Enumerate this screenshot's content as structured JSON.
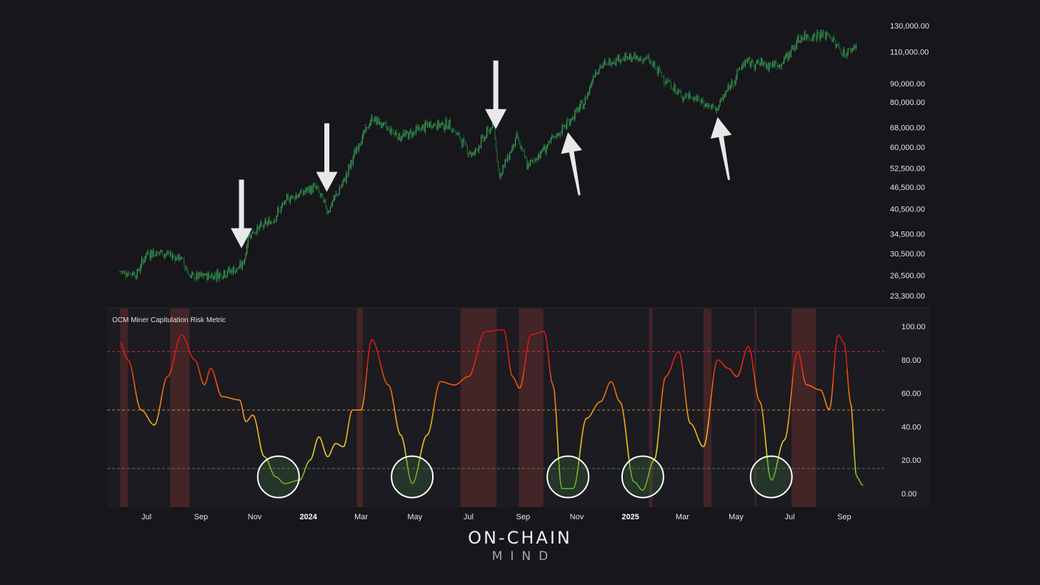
{
  "chart_data": [
    {
      "type": "candlestick",
      "name": "",
      "y_scale": "log",
      "ylim": [
        22000,
        135000
      ],
      "y_ticks": [
        "130,000.00",
        "110,000.00",
        "90,000.00",
        "80,000.00",
        "68,000.00",
        "60,000.00",
        "52,500.00",
        "46,500.00",
        "40,500.00",
        "34,500.00",
        "30,500.00",
        "26,500.00",
        "23,300.00"
      ],
      "x_range": [
        "2023-06",
        "2025-09"
      ],
      "price_path": [
        [
          "2023-06-01",
          27200
        ],
        [
          "2023-06-20",
          26800
        ],
        [
          "2023-07-01",
          30500
        ],
        [
          "2023-07-15",
          30800
        ],
        [
          "2023-08-10",
          29500
        ],
        [
          "2023-08-20",
          26200
        ],
        [
          "2023-09-15",
          26500
        ],
        [
          "2023-10-15",
          27800
        ],
        [
          "2023-10-20",
          29000
        ],
        [
          "2023-10-25",
          34500
        ],
        [
          "2023-11-20",
          37500
        ],
        [
          "2023-12-10",
          43500
        ],
        [
          "2024-01-10",
          46500
        ],
        [
          "2024-01-23",
          40000
        ],
        [
          "2024-02-10",
          48000
        ],
        [
          "2024-02-28",
          62000
        ],
        [
          "2024-03-14",
          72000
        ],
        [
          "2024-04-15",
          64000
        ],
        [
          "2024-05-20",
          69500
        ],
        [
          "2024-06-10",
          69000
        ],
        [
          "2024-07-05",
          57000
        ],
        [
          "2024-07-29",
          69500
        ],
        [
          "2024-08-05",
          50000
        ],
        [
          "2024-08-25",
          64000
        ],
        [
          "2024-09-06",
          53000
        ],
        [
          "2024-10-15",
          67000
        ],
        [
          "2024-11-10",
          80000
        ],
        [
          "2024-11-22",
          98000
        ],
        [
          "2024-12-17",
          106000
        ],
        [
          "2025-01-20",
          105000
        ],
        [
          "2025-02-25",
          84000
        ],
        [
          "2025-03-15",
          82000
        ],
        [
          "2025-04-08",
          76000
        ],
        [
          "2025-05-10",
          103000
        ],
        [
          "2025-06-20",
          101000
        ],
        [
          "2025-07-14",
          121000
        ],
        [
          "2025-08-14",
          123000
        ],
        [
          "2025-09-01",
          108000
        ],
        [
          "2025-09-15",
          115000
        ]
      ],
      "annotations": [
        {
          "type": "arrow-down",
          "date": "2023-10-17"
        },
        {
          "type": "arrow-down",
          "date": "2024-01-22"
        },
        {
          "type": "arrow-down",
          "date": "2024-08-01"
        },
        {
          "type": "arrow-up",
          "date": "2024-10-22"
        },
        {
          "type": "arrow-up",
          "date": "2025-04-10"
        }
      ]
    },
    {
      "type": "line",
      "title": "OCM Miner Capitulation Risk Metric",
      "ylim": [
        -8,
        110
      ],
      "y_ticks": [
        "100.00",
        "80.00",
        "60.00",
        "40.00",
        "20.00",
        "0.00"
      ],
      "x_ticks": [
        "Jul",
        "Sep",
        "Nov",
        "2024",
        "Mar",
        "May",
        "Jul",
        "Sep",
        "Nov",
        "2025",
        "Mar",
        "May",
        "Jul",
        "Sep"
      ],
      "x_ticks_bold": [
        "2024",
        "2025"
      ],
      "thresholds": [
        {
          "value": 85,
          "color": "#d83a3a"
        },
        {
          "value": 50,
          "color": "#e8901c"
        },
        {
          "value": 15,
          "color": "#3f9a55"
        }
      ],
      "series": [
        {
          "name": "",
          "points": [
            [
              "2023-06-01",
              90
            ],
            [
              "2023-06-10",
              80
            ],
            [
              "2023-06-25",
              50
            ],
            [
              "2023-07-10",
              41
            ],
            [
              "2023-07-25",
              70
            ],
            [
              "2023-08-10",
              95
            ],
            [
              "2023-08-25",
              80
            ],
            [
              "2023-09-05",
              65
            ],
            [
              "2023-09-12",
              75
            ],
            [
              "2023-09-25",
              58
            ],
            [
              "2023-10-15",
              56
            ],
            [
              "2023-10-22",
              43
            ],
            [
              "2023-10-30",
              47
            ],
            [
              "2023-11-12",
              22
            ],
            [
              "2023-11-25",
              10
            ],
            [
              "2023-12-05",
              6
            ],
            [
              "2023-12-22",
              8
            ],
            [
              "2024-01-03",
              20
            ],
            [
              "2024-01-13",
              34
            ],
            [
              "2024-01-23",
              22
            ],
            [
              "2024-02-01",
              30
            ],
            [
              "2024-02-10",
              28
            ],
            [
              "2024-02-20",
              50
            ],
            [
              "2024-03-01",
              50
            ],
            [
              "2024-03-13",
              92
            ],
            [
              "2024-04-01",
              65
            ],
            [
              "2024-04-15",
              35
            ],
            [
              "2024-04-28",
              6
            ],
            [
              "2024-05-15",
              35
            ],
            [
              "2024-05-30",
              67
            ],
            [
              "2024-06-15",
              65
            ],
            [
              "2024-07-01",
              70
            ],
            [
              "2024-07-20",
              97
            ],
            [
              "2024-08-10",
              98
            ],
            [
              "2024-08-20",
              70
            ],
            [
              "2024-08-28",
              63
            ],
            [
              "2024-09-10",
              95
            ],
            [
              "2024-09-25",
              97
            ],
            [
              "2024-10-05",
              65
            ],
            [
              "2024-10-15",
              3
            ],
            [
              "2024-10-28",
              3
            ],
            [
              "2024-11-12",
              45
            ],
            [
              "2024-11-28",
              55
            ],
            [
              "2024-12-10",
              67
            ],
            [
              "2024-12-20",
              55
            ],
            [
              "2025-01-05",
              7
            ],
            [
              "2025-01-15",
              2
            ],
            [
              "2025-01-28",
              20
            ],
            [
              "2025-02-10",
              70
            ],
            [
              "2025-02-25",
              85
            ],
            [
              "2025-03-10",
              42
            ],
            [
              "2025-03-25",
              28
            ],
            [
              "2025-04-10",
              80
            ],
            [
              "2025-04-22",
              75
            ],
            [
              "2025-05-02",
              70
            ],
            [
              "2025-05-15",
              88
            ],
            [
              "2025-05-28",
              55
            ],
            [
              "2025-06-10",
              8
            ],
            [
              "2025-06-25",
              32
            ],
            [
              "2025-07-10",
              85
            ],
            [
              "2025-07-20",
              65
            ],
            [
              "2025-08-05",
              62
            ],
            [
              "2025-08-15",
              50
            ],
            [
              "2025-08-25",
              95
            ],
            [
              "2025-09-01",
              90
            ],
            [
              "2025-09-08",
              55
            ],
            [
              "2025-09-15",
              10
            ],
            [
              "2025-09-22",
              5
            ]
          ]
        }
      ],
      "shaded_ranges": [
        [
          "2023-06-01",
          "2023-06-10"
        ],
        [
          "2023-07-28",
          "2023-08-19"
        ],
        [
          "2024-02-25",
          "2024-03-03"
        ],
        [
          "2024-06-22",
          "2024-08-02"
        ],
        [
          "2024-08-27",
          "2024-09-24"
        ],
        [
          "2025-01-22",
          "2025-01-26"
        ],
        [
          "2025-03-25",
          "2025-04-03"
        ],
        [
          "2025-05-22",
          "2025-05-24"
        ],
        [
          "2025-07-03",
          "2025-07-31"
        ]
      ],
      "highlight_circles": [
        "2023-11-28",
        "2024-04-28",
        "2024-10-22",
        "2025-01-15",
        "2025-06-10"
      ]
    }
  ],
  "brand": {
    "line1": "ON-CHAIN",
    "line2": "MIND"
  }
}
